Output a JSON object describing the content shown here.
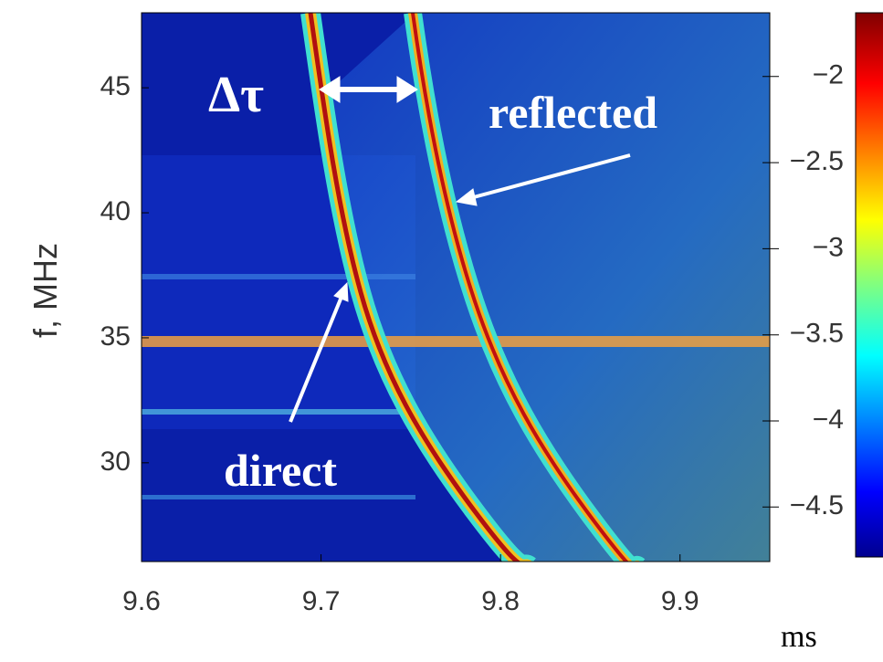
{
  "chart_data": {
    "type": "spectrogram",
    "xlabel": "ms",
    "ylabel": "f, MHz",
    "xlim": [
      9.6,
      9.95
    ],
    "xticks": [
      9.6,
      9.7,
      9.8,
      9.9
    ],
    "ylim": [
      26.05,
      48
    ],
    "yticks": [
      30,
      35,
      40,
      45
    ],
    "colorbar": {
      "lim": [
        -4.79,
        -1.63
      ],
      "ticks": [
        {
          "value": -2,
          "label": "−2"
        },
        {
          "value": -2.5,
          "label": "−2.5"
        },
        {
          "value": -3,
          "label": "−3"
        },
        {
          "value": -3.5,
          "label": "−3.5"
        },
        {
          "value": -4,
          "label": "−4"
        },
        {
          "value": -4.5,
          "label": "−4.5"
        }
      ]
    },
    "annotations": [
      "Δτ",
      "reflected",
      "direct"
    ]
  }
}
